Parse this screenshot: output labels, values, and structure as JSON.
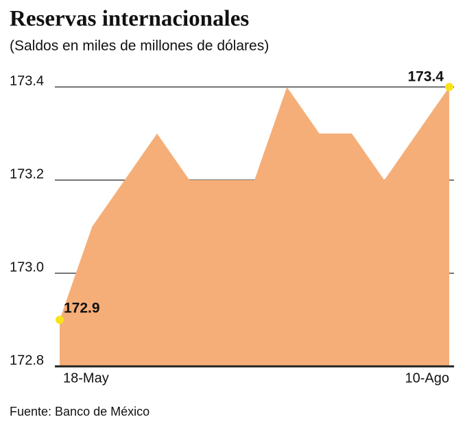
{
  "chart_data": {
    "type": "area",
    "title": "Reservas internacionales",
    "subtitle": "(Saldos en miles de millones de dólares)",
    "source": "Fuente: Banco de México",
    "categories": [
      "18-May",
      null,
      null,
      null,
      null,
      null,
      null,
      null,
      null,
      null,
      null,
      null,
      "10-Ago"
    ],
    "values": [
      172.9,
      173.1,
      173.2,
      173.3,
      173.2,
      173.2,
      173.2,
      173.4,
      173.3,
      173.3,
      173.2,
      173.3,
      173.4
    ],
    "value_labels": [
      "172.9",
      null,
      null,
      null,
      null,
      null,
      null,
      null,
      null,
      null,
      null,
      null,
      "173.4"
    ],
    "color": "#f6ae78",
    "marker_color": "#f7e31a",
    "ylim": [
      172.8,
      173.4
    ],
    "yticks": [
      172.8,
      {
        "value": 173,
        "label": "173.0"
      },
      173.2,
      173.4
    ],
    "grid": true
  }
}
